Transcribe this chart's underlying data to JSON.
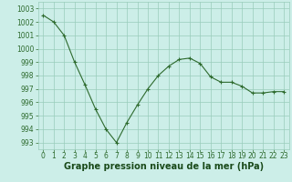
{
  "x": [
    0,
    1,
    2,
    3,
    4,
    5,
    6,
    7,
    8,
    9,
    10,
    11,
    12,
    13,
    14,
    15,
    16,
    17,
    18,
    19,
    20,
    21,
    22,
    23
  ],
  "y": [
    1002.5,
    1002.0,
    1001.0,
    999.0,
    997.3,
    995.5,
    994.0,
    993.0,
    994.5,
    995.8,
    997.0,
    998.0,
    998.7,
    999.2,
    999.3,
    998.9,
    997.9,
    997.5,
    997.5,
    997.2,
    996.7,
    996.7,
    996.8,
    996.8
  ],
  "line_color": "#2d6a2d",
  "marker": "+",
  "bg_color": "#cceee8",
  "grid_color": "#99ccbb",
  "xlabel": "Graphe pression niveau de la mer (hPa)",
  "xlabel_color": "#1a4a1a",
  "ylabel_ticks": [
    993,
    994,
    995,
    996,
    997,
    998,
    999,
    1000,
    1001,
    1002,
    1003
  ],
  "ylim": [
    992.5,
    1003.5
  ],
  "xlim": [
    -0.5,
    23.5
  ],
  "xticks": [
    0,
    1,
    2,
    3,
    4,
    5,
    6,
    7,
    8,
    9,
    10,
    11,
    12,
    13,
    14,
    15,
    16,
    17,
    18,
    19,
    20,
    21,
    22,
    23
  ],
  "tick_fontsize": 5.5,
  "xlabel_fontsize": 7
}
